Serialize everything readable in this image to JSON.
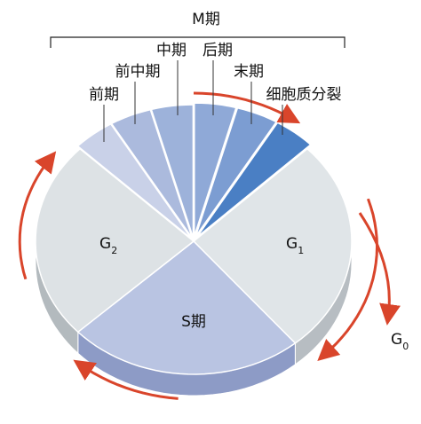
{
  "title": "M期",
  "phases": {
    "prophase": "前期",
    "prometaphase": "前中期",
    "metaphase": "中期",
    "anaphase": "后期",
    "telophase": "末期",
    "cytokinesis": "细胞质分裂"
  },
  "g1": {
    "text": "G",
    "sub": "1"
  },
  "g2": {
    "text": "G",
    "sub": "2"
  },
  "s": "S期",
  "g0": {
    "text": "G",
    "sub": "0"
  }
}
